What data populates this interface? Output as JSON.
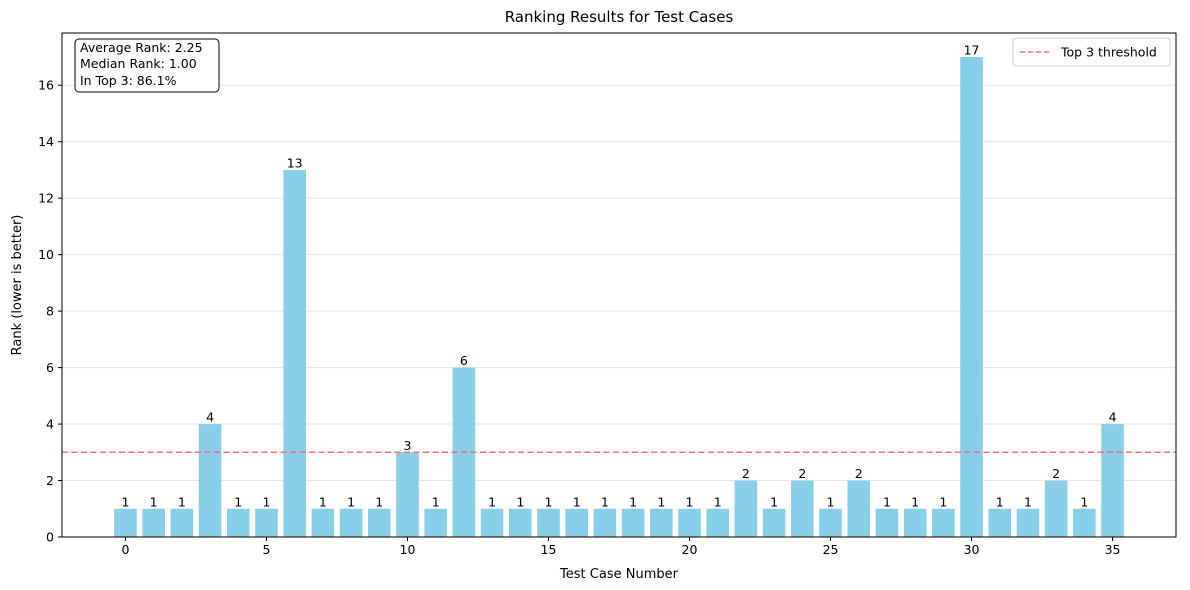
{
  "chart_data": {
    "type": "bar",
    "title": "Ranking Results for Test Cases",
    "xlabel": "Test Case Number",
    "ylabel": "Rank (lower is better)",
    "x": [
      0,
      1,
      2,
      3,
      4,
      5,
      6,
      7,
      8,
      9,
      10,
      11,
      12,
      13,
      14,
      15,
      16,
      17,
      18,
      19,
      20,
      21,
      22,
      23,
      24,
      25,
      26,
      27,
      28,
      29,
      30,
      31,
      32,
      33,
      34,
      35
    ],
    "values": [
      1,
      1,
      1,
      4,
      1,
      1,
      13,
      1,
      1,
      1,
      3,
      1,
      6,
      1,
      1,
      1,
      1,
      1,
      1,
      1,
      1,
      1,
      2,
      1,
      2,
      1,
      2,
      1,
      1,
      1,
      17,
      1,
      1,
      2,
      1,
      4
    ],
    "xlim": [
      -2.25,
      37.25
    ],
    "ylim": [
      0,
      17.85
    ],
    "xticks": [
      0,
      5,
      10,
      15,
      20,
      25,
      30,
      35
    ],
    "yticks": [
      0,
      2,
      4,
      6,
      8,
      10,
      12,
      14,
      16
    ],
    "grid": "y",
    "bar_color": "#87CEEB",
    "threshold": {
      "value": 3,
      "label": "Top 3 threshold",
      "color": "#FF6B6B"
    },
    "legend_position": "top-right",
    "stats": {
      "line1": "Average Rank: 2.25",
      "line2": "Median Rank: 1.00",
      "line3": "In Top 3: 86.1%"
    }
  }
}
